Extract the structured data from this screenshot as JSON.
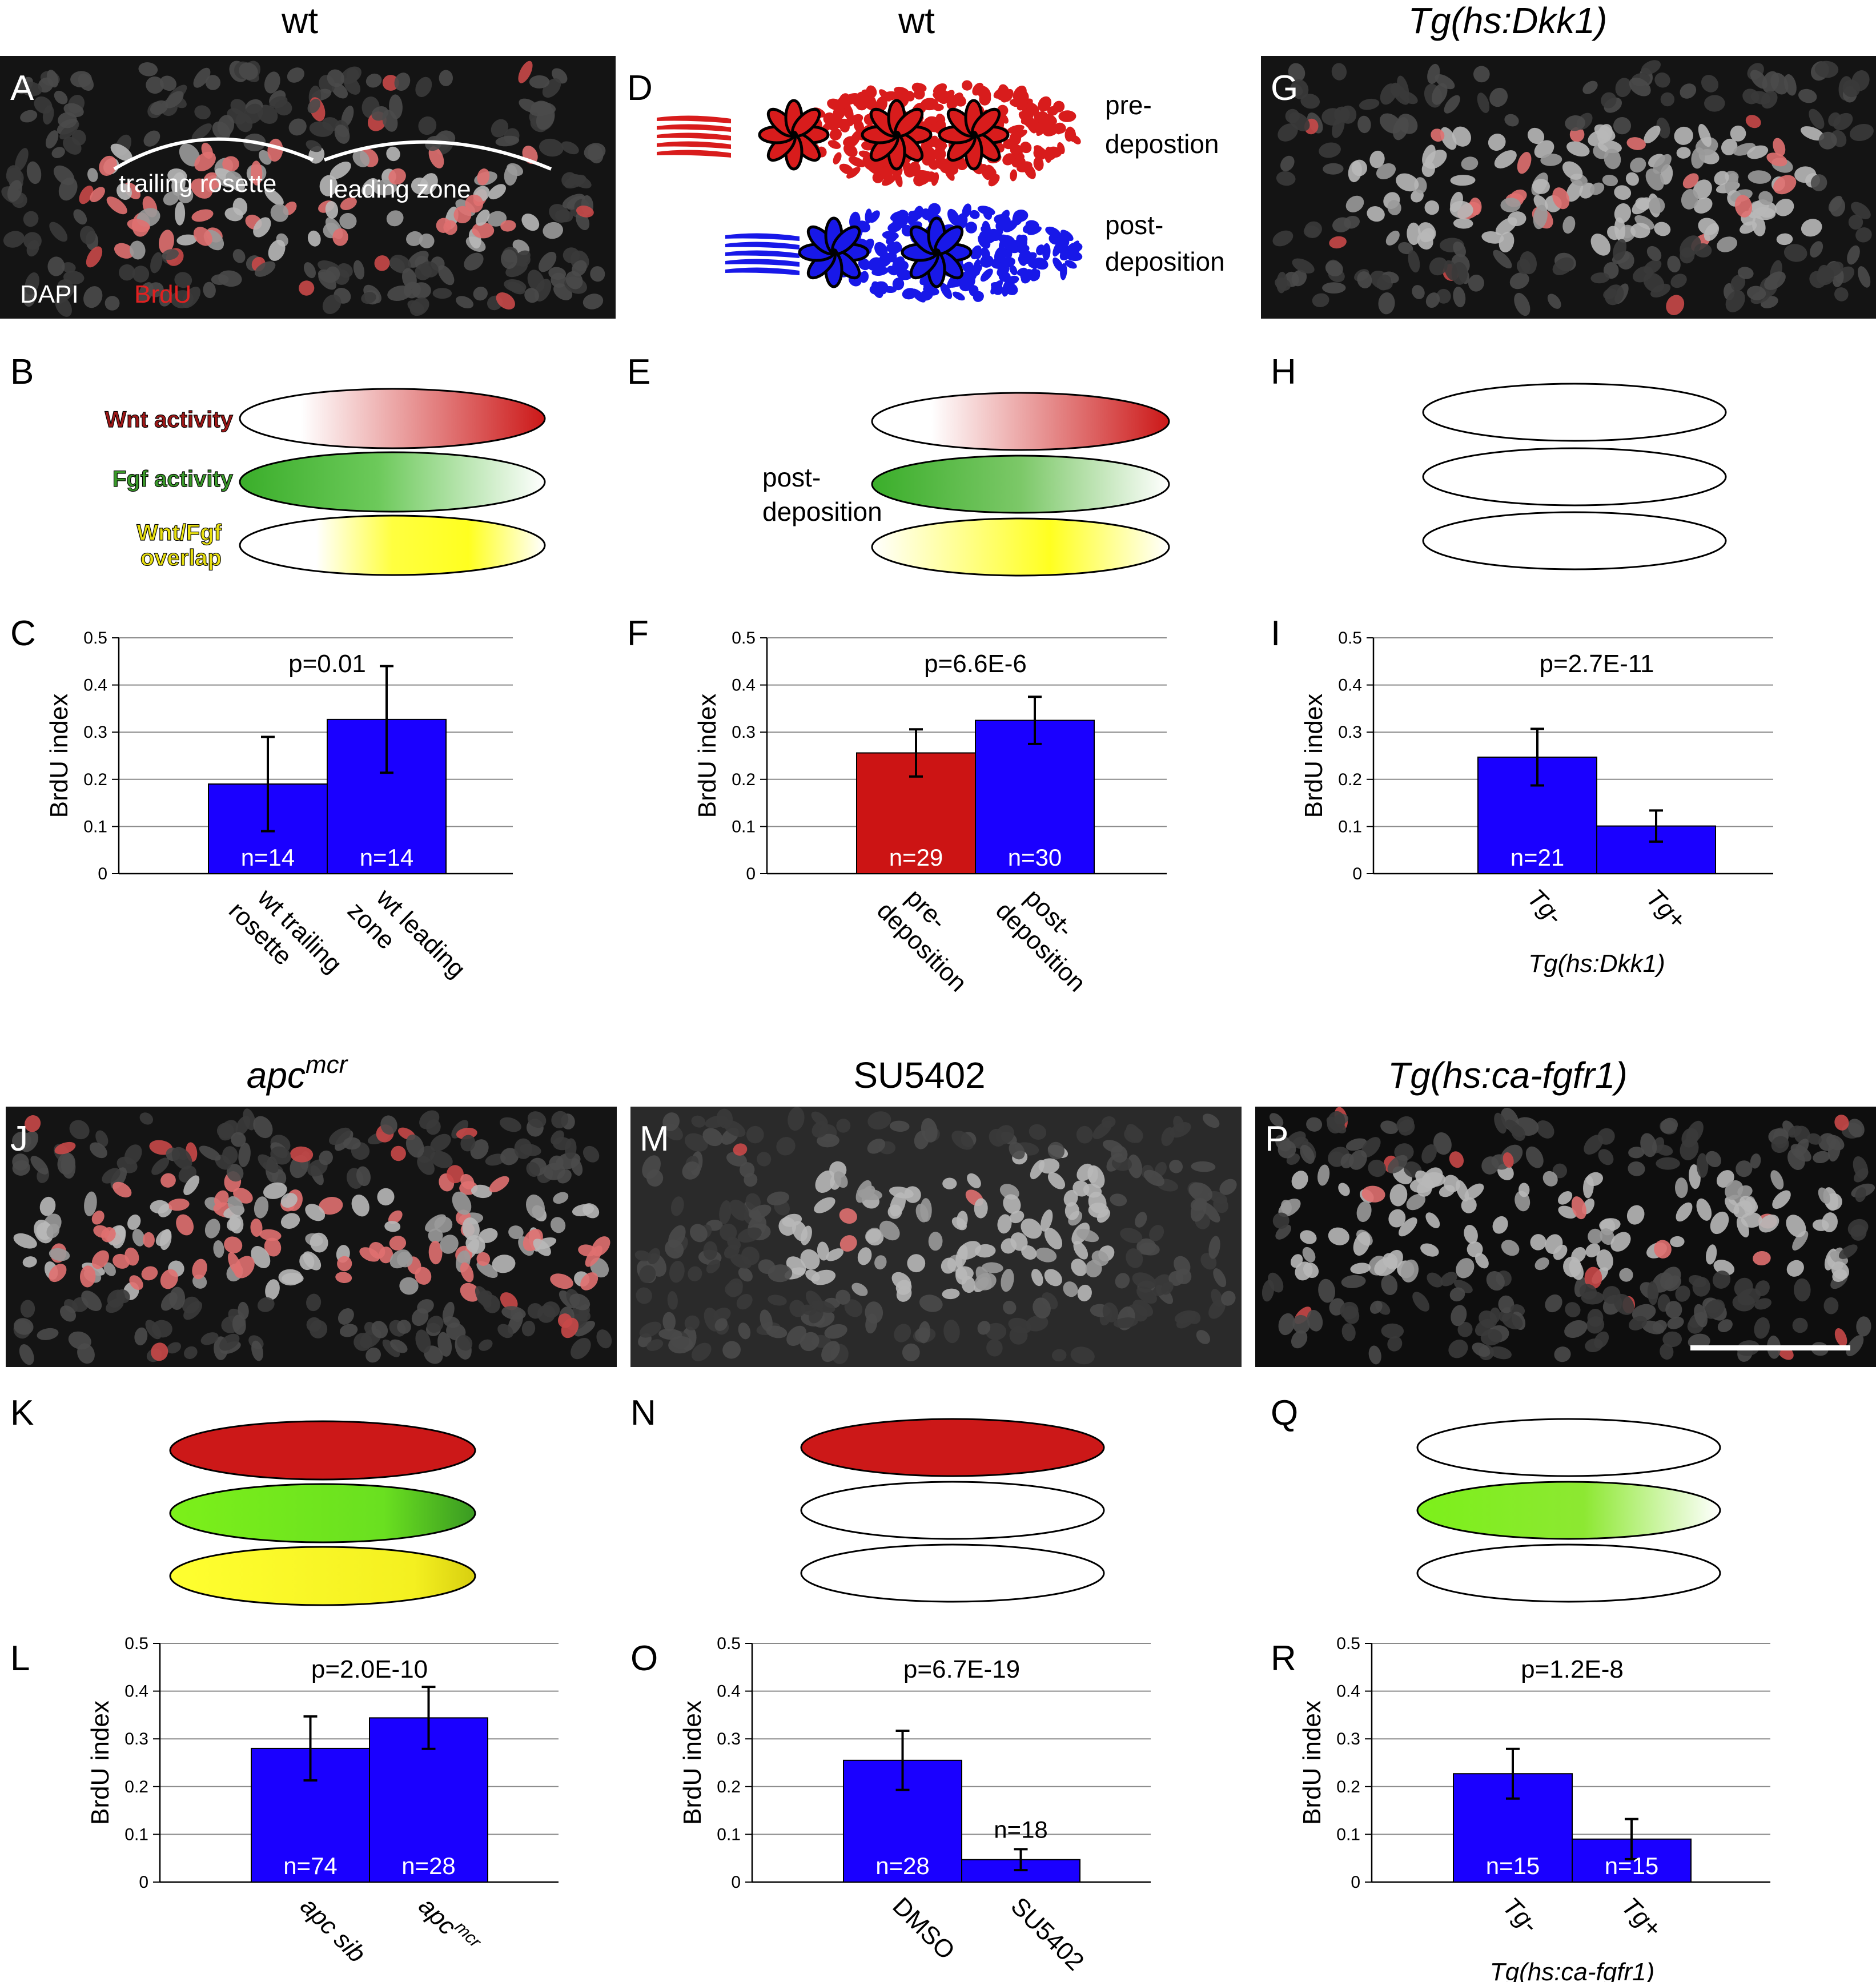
{
  "columns": {
    "A": "wt",
    "D": "wt",
    "G": "Tg(hs:Dkk1)",
    "J": "apc",
    "J_sup": "mcr",
    "M": "SU5402",
    "P": "Tg(hs:ca-fgfr1)"
  },
  "panel_letters": [
    "A",
    "B",
    "C",
    "D",
    "E",
    "F",
    "G",
    "H",
    "I",
    "J",
    "K",
    "L",
    "M",
    "N",
    "O",
    "P",
    "Q",
    "R"
  ],
  "panelA": {
    "trailing": "trailing rosette",
    "leading": "leading zone",
    "dapi": "DAPI",
    "brdu": "BrdU"
  },
  "panelD": {
    "pre1": "pre-",
    "pre2": "depostion",
    "post1": "post-",
    "post2": "deposition"
  },
  "panelB": {
    "wnt": "Wnt activity",
    "fgf": "Fgf activity",
    "ov1": "Wnt/Fgf",
    "ov2": "overlap"
  },
  "panelE": {
    "l1": "post-",
    "l2": "deposition"
  },
  "colors": {
    "bar_blue": "#1a00ff",
    "bar_red": "#cc1414",
    "wnt_red": "#cc1818",
    "fgf_green": "#3aae2a",
    "yellow": "#ffff20",
    "blue_cells": "#1818e8"
  },
  "ylabel": "BrdU index",
  "chart_data": [
    {
      "panel": "C",
      "type": "bar",
      "ylim": [
        0,
        0.5
      ],
      "yticks": [
        "0",
        "0.1",
        "0.2",
        "0.3",
        "0.4",
        "0.5"
      ],
      "ylabel": "BrdU index",
      "pvalue": "p=0.01",
      "bars": [
        {
          "value": 0.19,
          "err": 0.1,
          "n": "n=14",
          "color": "#1a00ff",
          "label": [
            "wt trailing",
            "rosette"
          ]
        },
        {
          "value": 0.327,
          "err": 0.113,
          "n": "n=14",
          "color": "#1a00ff",
          "label": [
            "wt leading",
            "zone"
          ]
        }
      ]
    },
    {
      "panel": "F",
      "type": "bar",
      "ylim": [
        0,
        0.5
      ],
      "yticks": [
        "0",
        "0.1",
        "0.2",
        "0.3",
        "0.4",
        "0.5"
      ],
      "ylabel": "BrdU index",
      "pvalue": "p=6.6E-6",
      "bars": [
        {
          "value": 0.256,
          "err": 0.05,
          "n": "n=29",
          "color": "#cc1414",
          "label": [
            "pre-",
            "deposition"
          ]
        },
        {
          "value": 0.325,
          "err": 0.05,
          "n": "n=30",
          "color": "#1a00ff",
          "label": [
            "post-",
            "deposition"
          ]
        }
      ]
    },
    {
      "panel": "I",
      "type": "bar",
      "ylim": [
        0,
        0.5
      ],
      "yticks": [
        "0",
        "0.1",
        "0.2",
        "0.3",
        "0.4",
        "0.5"
      ],
      "ylabel": "BrdU index",
      "pvalue": "p=2.7E-11",
      "group_label": "Tg(hs:Dkk1)",
      "bars": [
        {
          "value": 0.247,
          "err": 0.06,
          "n": "n=21",
          "color": "#1a00ff",
          "label": [
            "Tg-"
          ]
        },
        {
          "value": 0.101,
          "err": 0.033,
          "n": "",
          "color": "#1a00ff",
          "label": [
            "Tg+"
          ]
        }
      ]
    },
    {
      "panel": "L",
      "type": "bar",
      "ylim": [
        0,
        0.5
      ],
      "yticks": [
        "0",
        "0.1",
        "0.2",
        "0.3",
        "0.4",
        "0.5"
      ],
      "ylabel": "BrdU index",
      "pvalue": "p=2.0E-10",
      "bars": [
        {
          "value": 0.28,
          "err": 0.067,
          "n": "n=74",
          "color": "#1a00ff",
          "label": [
            "apc sib"
          ]
        },
        {
          "value": 0.344,
          "err": 0.065,
          "n": "n=28",
          "color": "#1a00ff",
          "label": [
            "apc"
          ],
          "label_sup": "mcr"
        }
      ]
    },
    {
      "panel": "O",
      "type": "bar",
      "ylim": [
        0,
        0.5
      ],
      "yticks": [
        "0",
        "0.1",
        "0.2",
        "0.3",
        "0.4",
        "0.5"
      ],
      "ylabel": "BrdU index",
      "pvalue": "p=6.7E-19",
      "bars": [
        {
          "value": 0.255,
          "err": 0.062,
          "n": "n=28",
          "color": "#1a00ff",
          "label": [
            "DMSO"
          ]
        },
        {
          "value": 0.047,
          "err": 0.022,
          "n": "n=18",
          "n_above": true,
          "color": "#1a00ff",
          "label": [
            "SU5402"
          ]
        }
      ]
    },
    {
      "panel": "R",
      "type": "bar",
      "ylim": [
        0,
        0.5
      ],
      "yticks": [
        "0",
        "0.1",
        "0.2",
        "0.3",
        "0.4",
        "0.5"
      ],
      "ylabel": "BrdU index",
      "pvalue": "p=1.2E-8",
      "group_label": "Tg(hs:ca-fgfr1)",
      "bars": [
        {
          "value": 0.227,
          "err": 0.052,
          "n": "n=15",
          "color": "#1a00ff",
          "label": [
            "Tg-"
          ]
        },
        {
          "value": 0.09,
          "err": 0.042,
          "n": "n=15",
          "color": "#1a00ff",
          "label": [
            "Tg+"
          ]
        }
      ]
    }
  ]
}
